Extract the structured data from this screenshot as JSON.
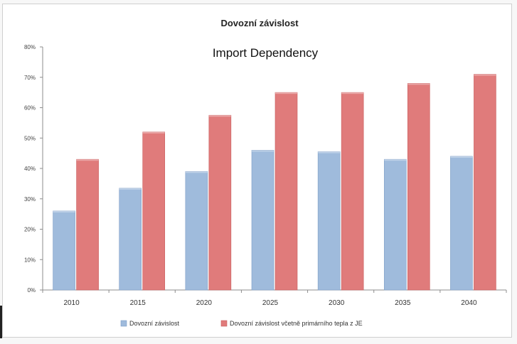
{
  "chart_data": {
    "type": "bar",
    "title": "Dovozní závislost",
    "subtitle": "Import Dependency",
    "categories": [
      "2010",
      "2015",
      "2020",
      "2025",
      "2030",
      "2035",
      "2040"
    ],
    "series": [
      {
        "name": "Dovozní závislost",
        "color": "#9fbbdc",
        "values": [
          26,
          33.5,
          39,
          46,
          45.5,
          43,
          44
        ]
      },
      {
        "name": "Dovozní závislost včetně primárního tepla z JE",
        "color": "#e07b7b",
        "values": [
          43,
          52,
          57.5,
          65,
          65,
          68,
          71
        ]
      }
    ],
    "y_ticks": [
      {
        "value": 0,
        "label": "0%"
      },
      {
        "value": 10,
        "label": "10%"
      },
      {
        "value": 20,
        "label": "20%"
      },
      {
        "value": 30,
        "label": "30%"
      },
      {
        "value": 40,
        "label": "40%"
      },
      {
        "value": 50,
        "label": "50%"
      },
      {
        "value": 60,
        "label": "60%"
      },
      {
        "value": 70,
        "label": "70%"
      },
      {
        "value": 80,
        "label": "80%"
      }
    ],
    "ylim": [
      0,
      80
    ],
    "grid": false,
    "legend_position": "bottom"
  }
}
